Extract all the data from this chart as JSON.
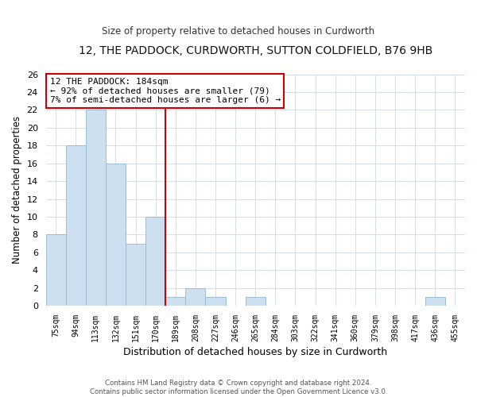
{
  "title": "12, THE PADDOCK, CURDWORTH, SUTTON COLDFIELD, B76 9HB",
  "subtitle": "Size of property relative to detached houses in Curdworth",
  "xlabel": "Distribution of detached houses by size in Curdworth",
  "ylabel": "Number of detached properties",
  "bin_labels": [
    "75sqm",
    "94sqm",
    "113sqm",
    "132sqm",
    "151sqm",
    "170sqm",
    "189sqm",
    "208sqm",
    "227sqm",
    "246sqm",
    "265sqm",
    "284sqm",
    "303sqm",
    "322sqm",
    "341sqm",
    "360sqm",
    "379sqm",
    "398sqm",
    "417sqm",
    "436sqm",
    "455sqm"
  ],
  "bar_values": [
    8,
    18,
    22,
    16,
    7,
    10,
    1,
    2,
    1,
    0,
    1,
    0,
    0,
    0,
    0,
    0,
    0,
    0,
    0,
    1,
    0
  ],
  "bar_color": "#cce0f0",
  "bar_edgecolor": "#9bbdd4",
  "reference_line_x": 5.5,
  "annotation_title": "12 THE PADDOCK: 184sqm",
  "annotation_line1": "← 92% of detached houses are smaller (79)",
  "annotation_line2": "7% of semi-detached houses are larger (6) →",
  "annotation_box_color": "#cc0000",
  "ylim": [
    0,
    26
  ],
  "yticks": [
    0,
    2,
    4,
    6,
    8,
    10,
    12,
    14,
    16,
    18,
    20,
    22,
    24,
    26
  ],
  "footer_line1": "Contains HM Land Registry data © Crown copyright and database right 2024.",
  "footer_line2": "Contains public sector information licensed under the Open Government Licence v3.0."
}
